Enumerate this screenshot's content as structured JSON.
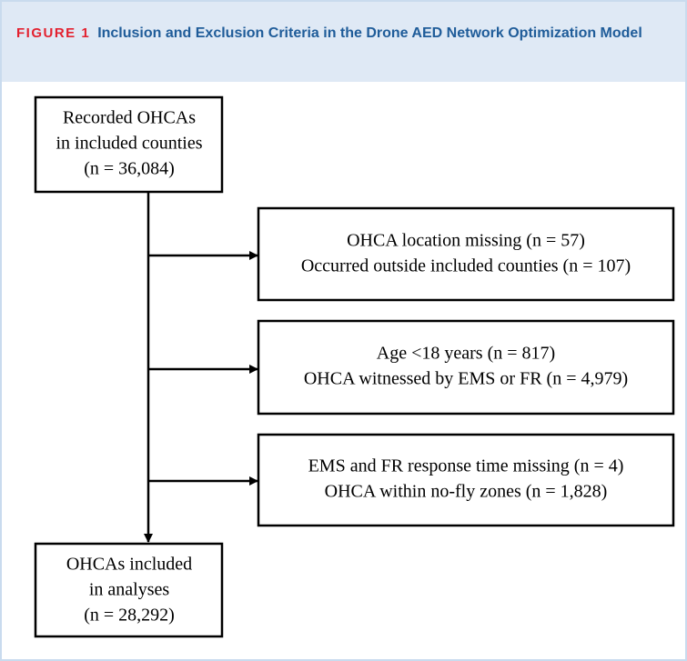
{
  "header": {
    "label": "FIGURE 1",
    "title": "Inclusion and Exclusion Criteria in the Drone AED Network Optimization Model"
  },
  "nodes": [
    {
      "lines": [
        "Recorded OHCAs",
        "in included counties",
        "(n = 36,084)"
      ]
    },
    {
      "lines": [
        "OHCA location missing (n = 57)",
        "Occurred outside included counties (n = 107)"
      ]
    },
    {
      "lines": [
        "Age <18 years (n = 817)",
        "OHCA witnessed by EMS or FR (n = 4,979)"
      ]
    },
    {
      "lines": [
        "EMS and FR response time missing (n = 4)",
        "OHCA within no-fly zones (n = 1,828)"
      ]
    },
    {
      "lines": [
        "OHCAs included",
        "in analyses",
        "(n = 28,292)"
      ]
    }
  ]
}
